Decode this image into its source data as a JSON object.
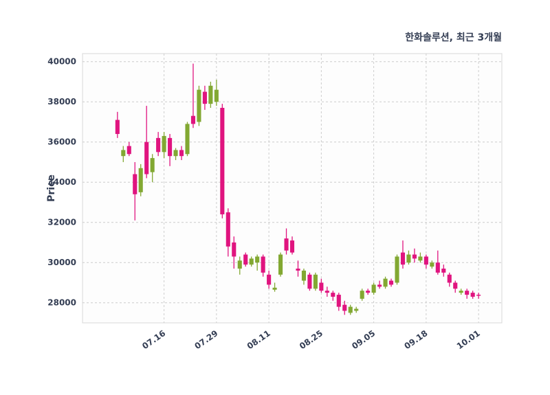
{
  "chart_data": {
    "type": "candlestick",
    "title": "한화솔루션, 최근 3개월",
    "ylabel": "Price",
    "xlabel": "",
    "ylim": [
      27000,
      40400
    ],
    "xlim": [
      -6,
      66
    ],
    "yticks": [
      28000,
      30000,
      32000,
      34000,
      36000,
      38000,
      40000
    ],
    "xticks": [
      {
        "i": 8,
        "label": "07.16"
      },
      {
        "i": 17,
        "label": "07.29"
      },
      {
        "i": 26,
        "label": "08.11"
      },
      {
        "i": 35,
        "label": "08.25"
      },
      {
        "i": 44,
        "label": "09.05"
      },
      {
        "i": 53,
        "label": "09.18"
      },
      {
        "i": 62,
        "label": "10.01"
      }
    ],
    "grid": "dashed",
    "legend": "none",
    "colors": {
      "up": "#82a832",
      "down": "#e0147f",
      "grid": "#cccccc",
      "border": "#d8d8d8",
      "plot_bg": "#fdfdfd",
      "text": "#343e54"
    },
    "candles": [
      [
        37100,
        37500,
        36200,
        36400
      ],
      [
        35300,
        35800,
        35000,
        35600
      ],
      [
        35800,
        36000,
        35300,
        35400
      ],
      [
        34400,
        35000,
        32100,
        33400
      ],
      [
        33500,
        34900,
        33300,
        34700
      ],
      [
        36000,
        37800,
        34200,
        34400
      ],
      [
        34500,
        35400,
        34000,
        35200
      ],
      [
        36200,
        36500,
        35300,
        35500
      ],
      [
        35500,
        36500,
        35200,
        36300
      ],
      [
        36200,
        36400,
        34800,
        35300
      ],
      [
        35300,
        35700,
        35100,
        35600
      ],
      [
        35600,
        35800,
        35100,
        35300
      ],
      [
        35400,
        37000,
        35300,
        36900
      ],
      [
        37300,
        39900,
        36700,
        36900
      ],
      [
        37000,
        38800,
        36800,
        38600
      ],
      [
        38500,
        38800,
        37600,
        37900
      ],
      [
        37900,
        39000,
        37700,
        38800
      ],
      [
        38000,
        39100,
        37800,
        38600
      ],
      [
        37700,
        37900,
        32200,
        32400
      ],
      [
        32500,
        32700,
        30300,
        30800
      ],
      [
        31000,
        31300,
        29700,
        30300
      ],
      [
        29700,
        30300,
        29400,
        30100
      ],
      [
        30400,
        30500,
        29800,
        29900
      ],
      [
        29900,
        30300,
        29800,
        30200
      ],
      [
        30000,
        30400,
        29600,
        30300
      ],
      [
        30300,
        30400,
        29300,
        29500
      ],
      [
        29400,
        29600,
        28700,
        28900
      ],
      [
        28650,
        29000,
        28550,
        28750
      ],
      [
        29400,
        30500,
        29300,
        30400
      ],
      [
        31200,
        31700,
        30400,
        30600
      ],
      [
        31100,
        31300,
        30400,
        30500
      ],
      [
        29700,
        30100,
        29300,
        29600
      ],
      [
        29100,
        29700,
        28900,
        29600
      ],
      [
        29400,
        29500,
        28600,
        28700
      ],
      [
        28700,
        29500,
        28600,
        29400
      ],
      [
        29000,
        29200,
        28500,
        28600
      ],
      [
        28600,
        28800,
        28300,
        28500
      ],
      [
        28500,
        28600,
        28100,
        28300
      ],
      [
        28400,
        28500,
        27600,
        27800
      ],
      [
        27900,
        28100,
        27400,
        27600
      ],
      [
        27500,
        27900,
        27400,
        27800
      ],
      [
        27600,
        27800,
        27500,
        27700
      ],
      [
        28200,
        28700,
        28100,
        28600
      ],
      [
        28600,
        28700,
        28400,
        28500
      ],
      [
        28500,
        29000,
        28400,
        28900
      ],
      [
        28900,
        29100,
        28700,
        28800
      ],
      [
        28800,
        29300,
        28700,
        29200
      ],
      [
        29100,
        29200,
        28800,
        28900
      ],
      [
        29000,
        30400,
        28900,
        30300
      ],
      [
        30500,
        31100,
        29700,
        29900
      ],
      [
        30000,
        30600,
        29900,
        30400
      ],
      [
        30400,
        30700,
        30000,
        30200
      ],
      [
        30100,
        30500,
        30000,
        30300
      ],
      [
        30300,
        30400,
        29700,
        29900
      ],
      [
        29800,
        30100,
        29700,
        30000
      ],
      [
        30000,
        30600,
        29400,
        29500
      ],
      [
        29700,
        29900,
        29300,
        29500
      ],
      [
        29400,
        29500,
        28800,
        29000
      ],
      [
        29000,
        29100,
        28500,
        28700
      ],
      [
        28500,
        28700,
        28400,
        28600
      ],
      [
        28600,
        28700,
        28200,
        28400
      ],
      [
        28500,
        28600,
        28200,
        28300
      ],
      [
        28400,
        28500,
        28200,
        28350
      ]
    ]
  }
}
